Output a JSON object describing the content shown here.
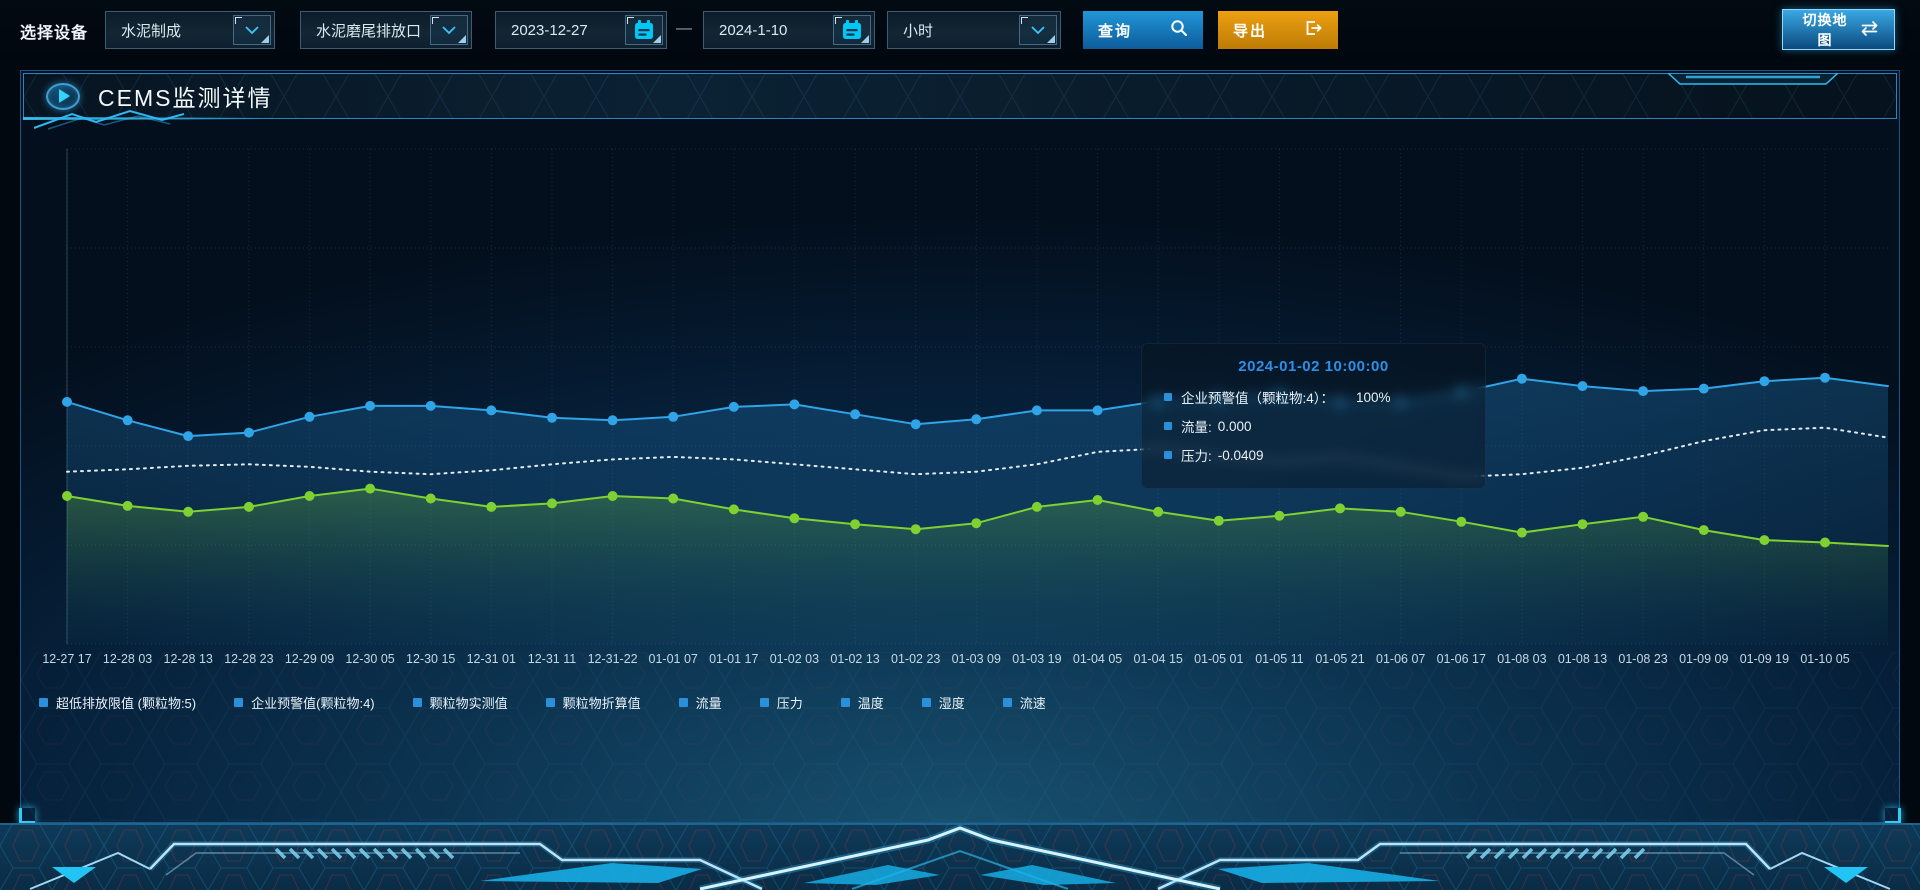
{
  "toolbar": {
    "device_label": "选择设备",
    "device_type": "水泥制成",
    "outlet": "水泥磨尾排放口",
    "date_start": "2023-12-27",
    "date_separator": "—",
    "date_end": "2024-1-10",
    "interval": "小时",
    "query_label": "查询",
    "export_label": "导出",
    "switch_map_label": "切换地图"
  },
  "panel": {
    "title": "CEMS监测详情"
  },
  "tooltip": {
    "title": "2024-01-02 10:00:00",
    "items": [
      {
        "label": "企业预警值（颗粒物:4）：",
        "value": "100%"
      },
      {
        "label": "流量:",
        "value": "0.000"
      },
      {
        "label": "压力:",
        "value": "-0.0409"
      }
    ]
  },
  "legend": [
    "超低排放限值 (颗粒物:5)",
    "企业预警值(颗粒物:4)",
    "颗粒物实测值",
    "颗粒物折算值",
    "流量",
    "压力",
    "温度",
    "湿度",
    "流速"
  ],
  "chart_data": {
    "type": "line",
    "title": "CEMS监测详情",
    "x_labels": [
      "12-27 17",
      "12-28 03",
      "12-28 13",
      "12-28 23",
      "12-29 09",
      "12-30 05",
      "12-30 15",
      "12-31 01",
      "12-31 11",
      "12-31-22",
      "01-01 07",
      "01-01 17",
      "01-02 03",
      "01-02 13",
      "01-02 23",
      "01-03 09",
      "01-03 19",
      "01-04 05",
      "01-04 15",
      "01-05 01",
      "01-05 11",
      "01-05 21",
      "01-06 07",
      "01-06 17",
      "01-08 03",
      "01-08 13",
      "01-08 23",
      "01-09 09",
      "01-09 19",
      "01-10 05"
    ],
    "ylim": [
      0,
      100
    ],
    "y_axis_ticks_visible": false,
    "grid": true,
    "legend_position": "bottom",
    "highlighted_point": "2024-01-02 10:00:00",
    "series": [
      {
        "id": "blue-line",
        "color": "#2fa4e7",
        "style": "solid",
        "symbol": "circle",
        "area_fill": true,
        "relative_values": [
          48.9,
          45.2,
          42.0,
          42.7,
          45.9,
          48.1,
          48.1,
          47.2,
          45.7,
          45.2,
          45.9,
          47.9,
          48.4,
          46.4,
          44.4,
          45.4,
          47.2,
          47.2,
          49.1,
          49.6,
          50.4,
          48.9,
          48.9,
          50.9,
          53.6,
          52.1,
          51.1,
          51.6,
          53.1,
          53.8
        ],
        "edge_value": 52.1
      },
      {
        "id": "white-dashed-line",
        "color": "#e2ebef",
        "style": "dotted",
        "symbol": "none",
        "area_fill": false,
        "relative_values": [
          34.8,
          35.3,
          36.0,
          36.3,
          35.8,
          34.8,
          34.3,
          35.1,
          36.3,
          37.3,
          37.8,
          37.3,
          36.3,
          35.3,
          34.3,
          34.8,
          36.3,
          38.8,
          39.5,
          37.8,
          36.8,
          37.8,
          36.0,
          33.8,
          34.3,
          35.6,
          38.0,
          41.0,
          43.2,
          43.7
        ],
        "edge_value": 41.7
      },
      {
        "id": "green-line",
        "color": "#7fd132",
        "style": "solid",
        "symbol": "circle",
        "area_fill": true,
        "relative_values": [
          29.9,
          27.9,
          26.7,
          27.7,
          29.9,
          31.4,
          29.4,
          27.7,
          28.4,
          29.9,
          29.4,
          27.2,
          25.4,
          24.2,
          23.2,
          24.4,
          27.7,
          29.1,
          26.7,
          24.9,
          25.9,
          27.4,
          26.7,
          24.7,
          22.5,
          24.2,
          25.7,
          23.0,
          21.0,
          20.5
        ],
        "edge_value": 19.8
      }
    ],
    "note": "No y-axis tick labels are visible; series values are estimated as percent of plot height."
  },
  "colors": {
    "accent_cyan": "#35c8f8",
    "blue_series": "#2fa4e7",
    "green_series": "#7fd132",
    "white_series": "#e2ebef",
    "legend_marker": "#2b90d9",
    "tooltip_title": "#2e8fe8",
    "query_button": "#1a7ec2",
    "export_button": "#d89410",
    "panel_border": "#14578c",
    "axis_label": "#c5d9e2"
  }
}
